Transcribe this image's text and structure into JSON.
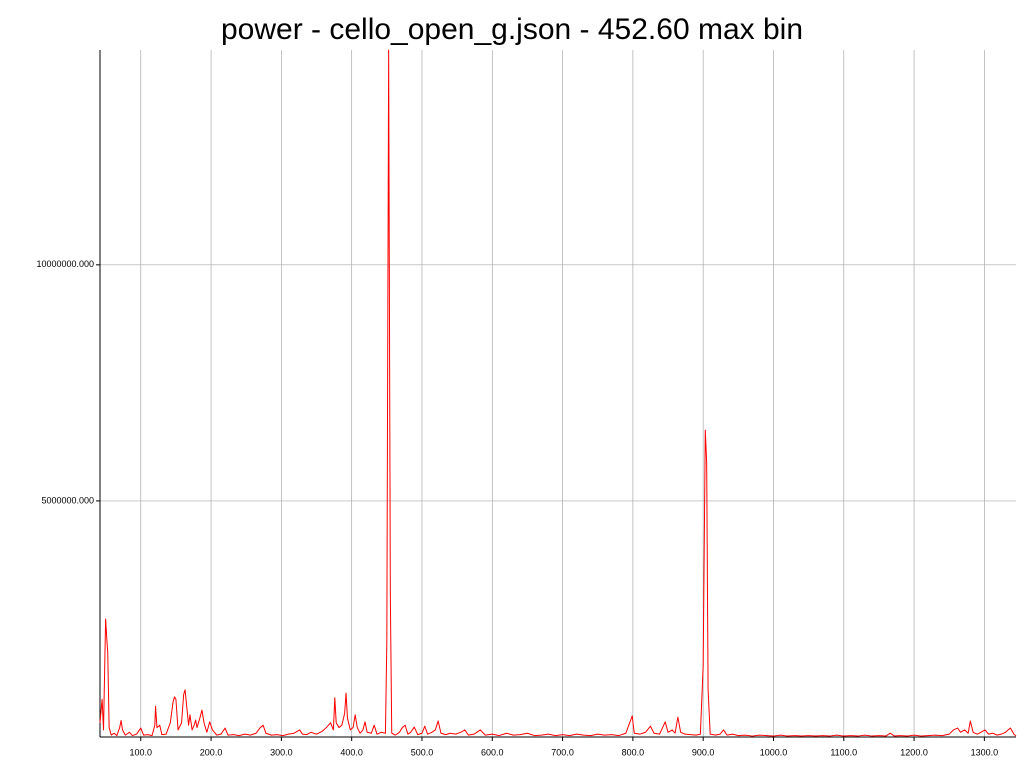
{
  "chart_data": {
    "type": "line",
    "title": "power - cello_open_g.json - 452.60 max bin",
    "xlim": [
      42,
      1345
    ],
    "ylim": [
      0,
      14550000
    ],
    "xticks": [
      {
        "value": 100,
        "label": "100.0"
      },
      {
        "value": 200,
        "label": "200.0"
      },
      {
        "value": 300,
        "label": "300.0"
      },
      {
        "value": 400,
        "label": "400.0"
      },
      {
        "value": 500,
        "label": "500.0"
      },
      {
        "value": 600,
        "label": "600.0"
      },
      {
        "value": 700,
        "label": "700.0"
      },
      {
        "value": 800,
        "label": "800.0"
      },
      {
        "value": 900,
        "label": "900.0"
      },
      {
        "value": 1000,
        "label": "1000.0"
      },
      {
        "value": 1100,
        "label": "1100.0"
      },
      {
        "value": 1200,
        "label": "1200.0"
      },
      {
        "value": 1300,
        "label": "1300.0"
      }
    ],
    "yticks": [
      {
        "value": 5000000,
        "label": "5000000.000"
      },
      {
        "value": 10000000,
        "label": "10000000.000"
      }
    ],
    "grid": true,
    "series": [
      {
        "color": "#ff0000",
        "x": [
          42,
          45,
          47,
          50,
          52,
          53,
          55,
          58,
          62,
          66,
          70,
          72,
          74,
          78,
          84,
          88,
          94,
          100,
          104,
          110,
          116,
          120,
          121,
          123,
          127,
          130,
          136,
          142,
          146,
          148,
          150,
          153,
          158,
          161,
          163,
          165,
          168,
          170,
          173,
          176,
          178,
          180,
          184,
          187,
          190,
          194,
          198,
          202,
          208,
          214,
          220,
          224,
          232,
          240,
          248,
          256,
          264,
          270,
          274,
          278,
          286,
          294,
          302,
          310,
          318,
          326,
          330,
          336,
          342,
          350,
          358,
          364,
          370,
          374,
          376,
          378,
          382,
          386,
          390,
          392,
          394,
          398,
          402,
          405,
          408,
          412,
          416,
          419,
          422,
          428,
          432,
          436,
          442,
          448,
          450,
          452.6,
          455,
          457,
          462,
          468,
          472,
          476,
          480,
          484,
          489,
          494,
          500,
          504,
          508,
          514,
          519,
          523,
          527,
          534,
          540,
          548,
          555,
          561,
          566,
          574,
          583,
          590,
          600,
          610,
          620,
          630,
          640,
          650,
          660,
          670,
          680,
          690,
          700,
          710,
          720,
          730,
          740,
          750,
          760,
          770,
          780,
          790,
          799,
          802,
          810,
          818,
          825,
          830,
          838,
          846,
          850,
          856,
          860,
          864,
          868,
          874,
          882,
          890,
          896,
          900,
          903,
          905,
          907,
          910,
          918,
          924,
          929,
          934,
          942,
          950,
          960,
          970,
          980,
          990,
          1000,
          1010,
          1020,
          1030,
          1040,
          1050,
          1060,
          1070,
          1080,
          1090,
          1100,
          1110,
          1120,
          1130,
          1140,
          1150,
          1160,
          1166,
          1172,
          1180,
          1190,
          1200,
          1210,
          1220,
          1230,
          1240,
          1250,
          1256,
          1262,
          1266,
          1272,
          1277,
          1280,
          1284,
          1290,
          1295,
          1301,
          1306,
          1312,
          1318,
          1324,
          1330,
          1337,
          1342,
          1345
        ],
        "values": [
          300000,
          800000,
          150000,
          2500000,
          2000000,
          1800000,
          200000,
          40000,
          80000,
          30000,
          200000,
          350000,
          150000,
          40000,
          100000,
          30000,
          60000,
          190000,
          40000,
          50000,
          30000,
          250000,
          650000,
          200000,
          250000,
          50000,
          60000,
          300000,
          750000,
          850000,
          800000,
          150000,
          300000,
          900000,
          1000000,
          700000,
          250000,
          470000,
          150000,
          250000,
          360000,
          200000,
          400000,
          570000,
          300000,
          100000,
          320000,
          150000,
          40000,
          60000,
          190000,
          40000,
          50000,
          30000,
          60000,
          40000,
          80000,
          200000,
          250000,
          80000,
          40000,
          50000,
          30000,
          60000,
          80000,
          150000,
          60000,
          50000,
          100000,
          60000,
          120000,
          200000,
          300000,
          150000,
          830000,
          300000,
          200000,
          250000,
          500000,
          930000,
          400000,
          150000,
          200000,
          470000,
          200000,
          80000,
          150000,
          320000,
          100000,
          80000,
          250000,
          60000,
          100000,
          80000,
          2000000,
          14550000,
          3000000,
          80000,
          40000,
          100000,
          200000,
          250000,
          60000,
          100000,
          210000,
          50000,
          80000,
          230000,
          60000,
          100000,
          150000,
          340000,
          80000,
          50000,
          80000,
          60000,
          100000,
          150000,
          40000,
          60000,
          150000,
          40000,
          60000,
          30000,
          80000,
          40000,
          50000,
          80000,
          30000,
          40000,
          60000,
          30000,
          50000,
          30000,
          60000,
          40000,
          30000,
          60000,
          40000,
          50000,
          30000,
          80000,
          445000,
          80000,
          60000,
          100000,
          230000,
          80000,
          60000,
          320000,
          100000,
          150000,
          80000,
          420000,
          100000,
          60000,
          50000,
          40000,
          60000,
          1500000,
          6500000,
          5800000,
          1000000,
          60000,
          40000,
          60000,
          150000,
          40000,
          60000,
          30000,
          40000,
          20000,
          40000,
          30000,
          20000,
          40000,
          20000,
          30000,
          20000,
          30000,
          20000,
          30000,
          20000,
          40000,
          20000,
          30000,
          20000,
          40000,
          20000,
          30000,
          20000,
          80000,
          20000,
          30000,
          20000,
          40000,
          20000,
          30000,
          40000,
          30000,
          60000,
          150000,
          190000,
          100000,
          150000,
          80000,
          340000,
          100000,
          60000,
          100000,
          150000,
          60000,
          80000,
          40000,
          60000,
          100000,
          190000,
          60000,
          20000
        ]
      }
    ]
  }
}
